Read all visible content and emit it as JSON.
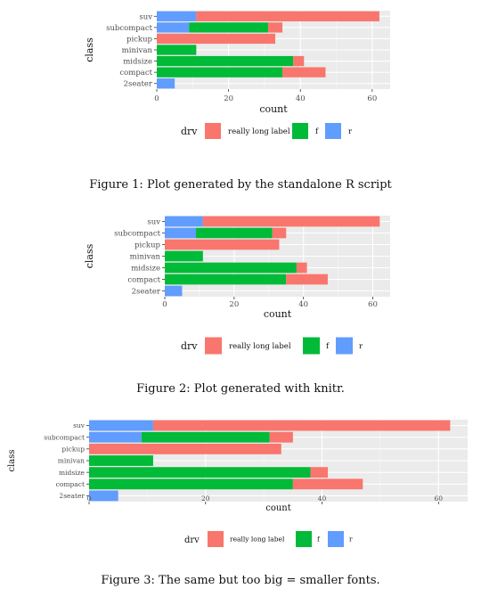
{
  "figures": [
    {
      "caption": "Figure 1: Plot generated by the standalone R script",
      "chart_data": {
        "type": "bar",
        "orientation": "horizontal",
        "stacked": true,
        "categories": [
          "suv",
          "subcompact",
          "pickup",
          "minivan",
          "midsize",
          "compact",
          "2seater"
        ],
        "series": [
          {
            "name": "really long label",
            "color": "#F8766D",
            "values": [
              51,
              4,
              33,
              0,
              3,
              12,
              0
            ]
          },
          {
            "name": "f",
            "color": "#00BA38",
            "values": [
              0,
              22,
              0,
              11,
              38,
              35,
              0
            ]
          },
          {
            "name": "r",
            "color": "#619CFF",
            "values": [
              11,
              9,
              0,
              0,
              0,
              0,
              5
            ]
          }
        ],
        "xlabel": "count",
        "ylabel": "class",
        "xlim": [
          0,
          65
        ],
        "xticks": [
          "0",
          "20",
          "40",
          "60"
        ],
        "legend_title": "drv",
        "legend_position": "bottom",
        "grid": true
      }
    },
    {
      "caption": "Figure 2: Plot generated with knitr.",
      "chart_data": {
        "type": "bar",
        "orientation": "horizontal",
        "stacked": true,
        "categories": [
          "suv",
          "subcompact",
          "pickup",
          "minivan",
          "midsize",
          "compact",
          "2seater"
        ],
        "series": [
          {
            "name": "really long label",
            "color": "#F8766D",
            "values": [
              51,
              4,
              33,
              0,
              3,
              12,
              0
            ]
          },
          {
            "name": "f",
            "color": "#00BA38",
            "values": [
              0,
              22,
              0,
              11,
              38,
              35,
              0
            ]
          },
          {
            "name": "r",
            "color": "#619CFF",
            "values": [
              11,
              9,
              0,
              0,
              0,
              0,
              5
            ]
          }
        ],
        "xlabel": "count",
        "ylabel": "class",
        "xlim": [
          0,
          65
        ],
        "xticks": [
          "0",
          "20",
          "40",
          "60"
        ],
        "legend_title": "drv",
        "legend_position": "bottom",
        "grid": true
      }
    },
    {
      "caption": "Figure 3: The same but too big = smaller fonts.",
      "chart_data": {
        "type": "bar",
        "orientation": "horizontal",
        "stacked": true,
        "categories": [
          "suv",
          "subcompact",
          "pickup",
          "minivan",
          "midsize",
          "compact",
          "2seater"
        ],
        "series": [
          {
            "name": "really long label",
            "color": "#F8766D",
            "values": [
              51,
              4,
              33,
              0,
              3,
              12,
              0
            ]
          },
          {
            "name": "f",
            "color": "#00BA38",
            "values": [
              0,
              22,
              0,
              11,
              38,
              35,
              0
            ]
          },
          {
            "name": "r",
            "color": "#619CFF",
            "values": [
              11,
              9,
              0,
              0,
              0,
              0,
              5
            ]
          }
        ],
        "xlabel": "count",
        "ylabel": "class",
        "xlim": [
          0,
          65
        ],
        "xticks": [
          "0",
          "20",
          "40",
          "60"
        ],
        "legend_title": "drv",
        "legend_position": "bottom",
        "grid": true
      }
    }
  ]
}
